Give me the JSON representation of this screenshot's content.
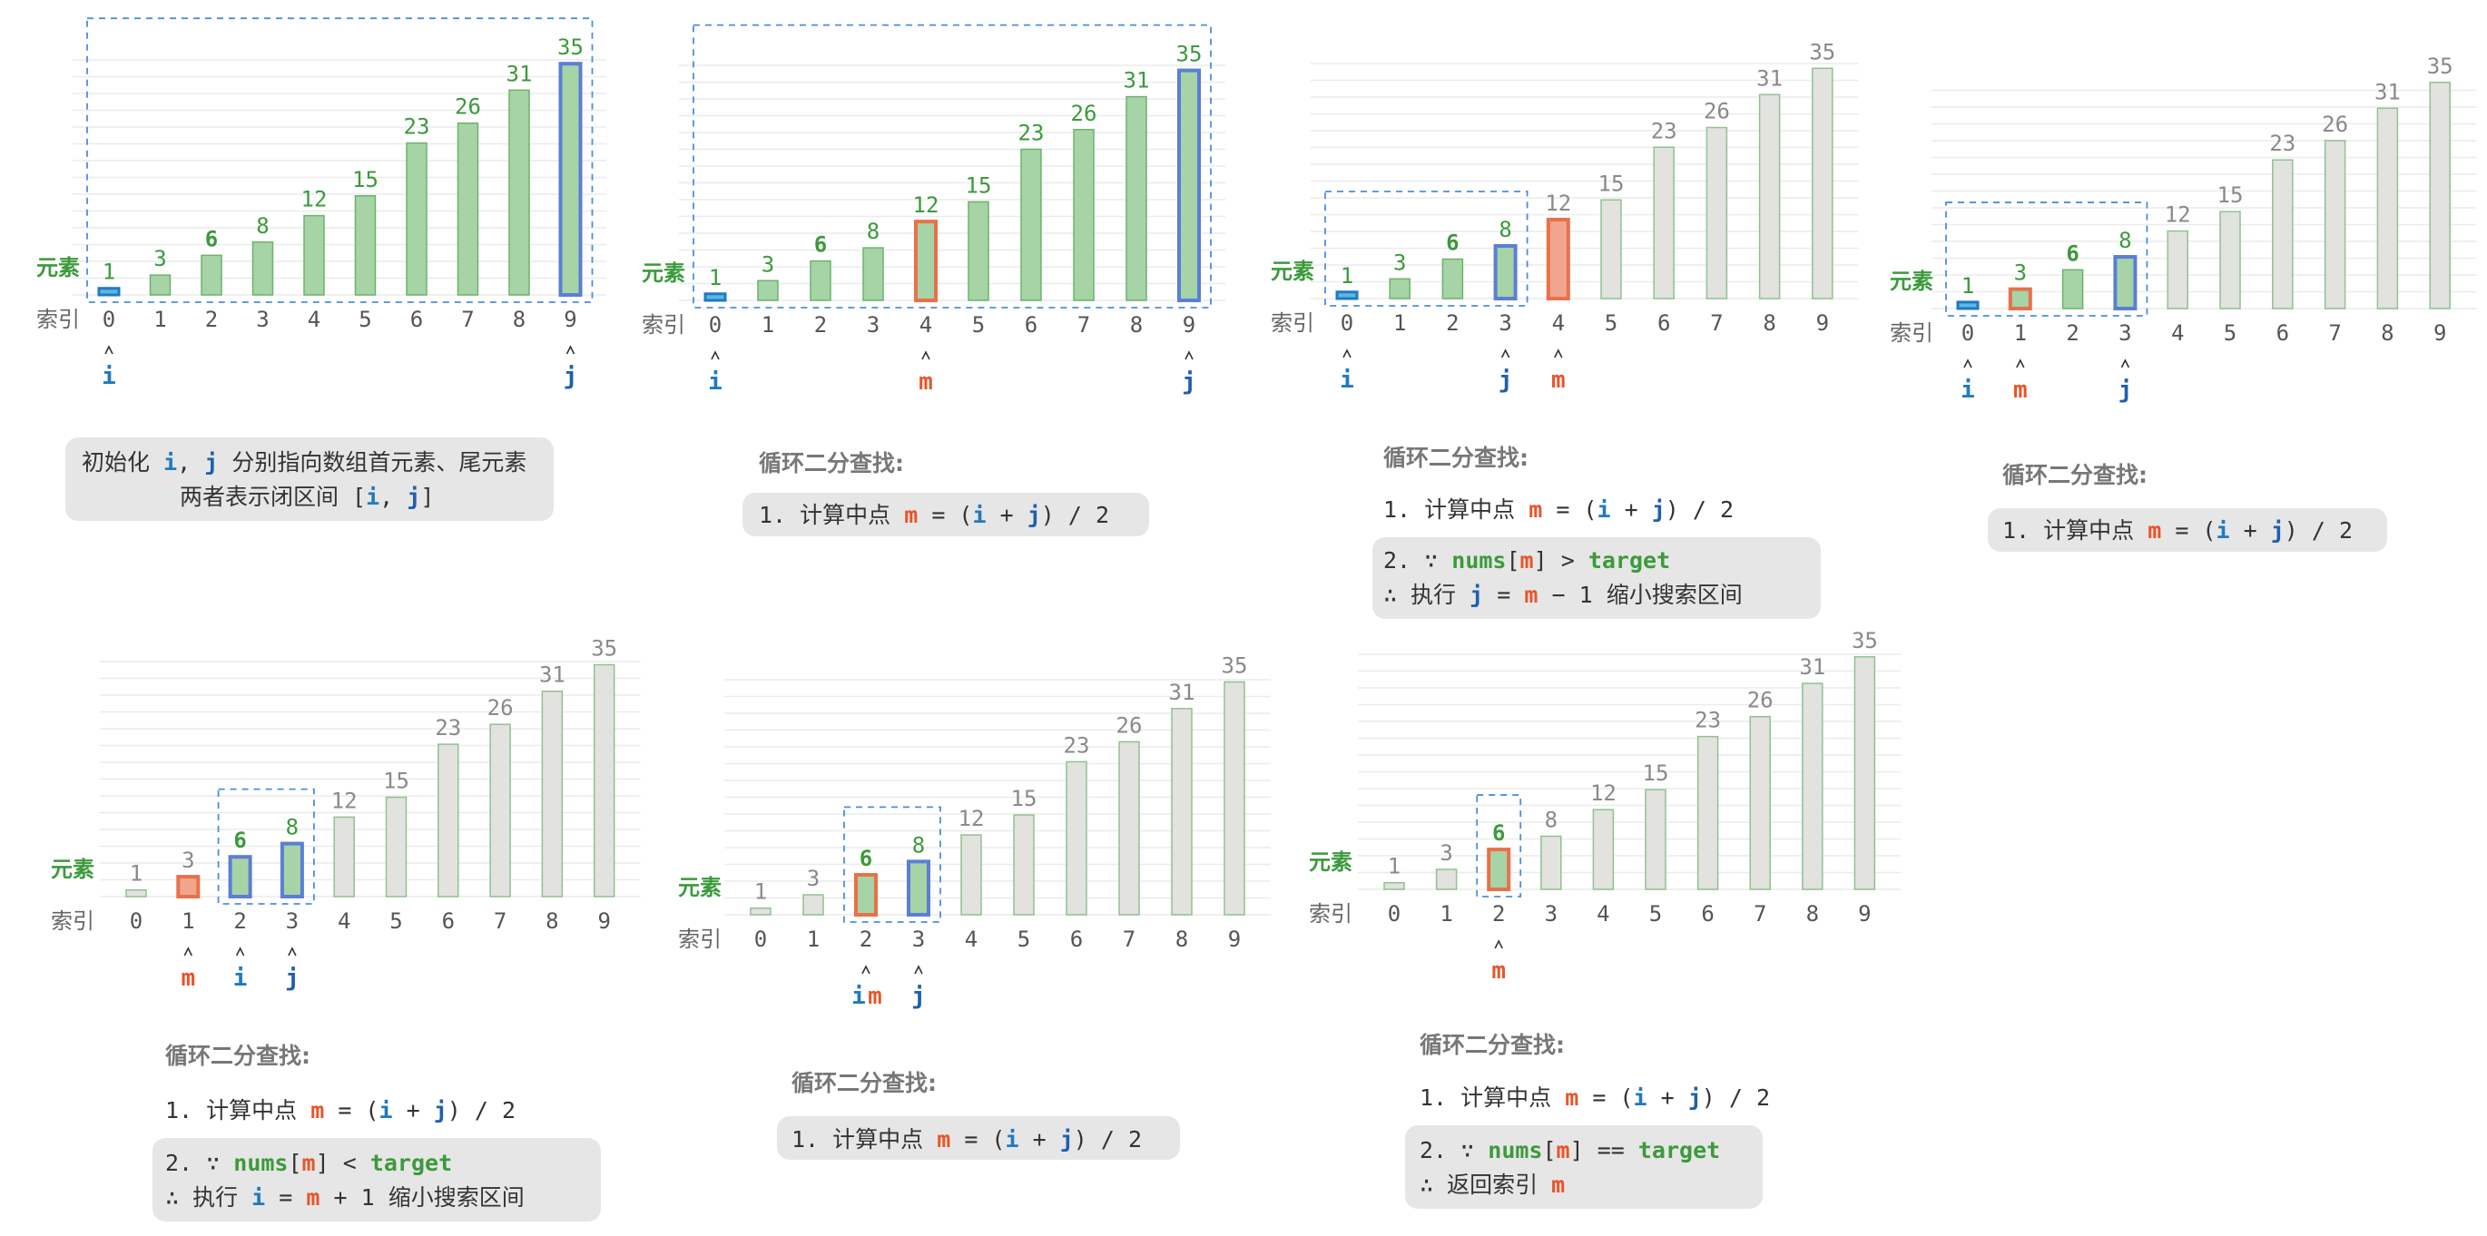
{
  "labels": {
    "element": "元素",
    "index": "索引"
  },
  "colors": {
    "green_bar": "#a6d4a6",
    "green_border": "#6bb36b",
    "grey_bar": "#e2e2df",
    "grey_border": "#8fc28f",
    "i_color": "#1f7ac2",
    "j_color": "#1f5fb0",
    "m_color": "#e8552a",
    "m_border": "#e8714a",
    "ij_border": "#5b7ed6",
    "green_text": "#3c9a3c",
    "dash": "#4a8ee0",
    "box_bg": "#e6e6e6",
    "label_green": "#3c9a3c",
    "grey_text": "#8a8a8a"
  },
  "chart_data": [
    {
      "type": "bar",
      "name": "step-1 init",
      "categories": [
        "0",
        "1",
        "2",
        "3",
        "4",
        "5",
        "6",
        "7",
        "8",
        "9"
      ],
      "values": [
        1,
        3,
        6,
        8,
        12,
        15,
        23,
        26,
        31,
        35
      ],
      "active_range": [
        0,
        9
      ],
      "pointers": [
        {
          "index": 0,
          "label": "i"
        },
        {
          "index": 9,
          "label": "j"
        }
      ]
    },
    {
      "type": "bar",
      "name": "step-2",
      "categories": [
        "0",
        "1",
        "2",
        "3",
        "4",
        "5",
        "6",
        "7",
        "8",
        "9"
      ],
      "values": [
        1,
        3,
        6,
        8,
        12,
        15,
        23,
        26,
        31,
        35
      ],
      "active_range": [
        0,
        9
      ],
      "pointers": [
        {
          "index": 0,
          "label": "i"
        },
        {
          "index": 4,
          "label": "m"
        },
        {
          "index": 9,
          "label": "j"
        }
      ]
    },
    {
      "type": "bar",
      "name": "step-3",
      "categories": [
        "0",
        "1",
        "2",
        "3",
        "4",
        "5",
        "6",
        "7",
        "8",
        "9"
      ],
      "values": [
        1,
        3,
        6,
        8,
        12,
        15,
        23,
        26,
        31,
        35
      ],
      "active_range": [
        0,
        3
      ],
      "pointers": [
        {
          "index": 0,
          "label": "i"
        },
        {
          "index": 3,
          "label": "j"
        },
        {
          "index": 4,
          "label": "m"
        }
      ]
    },
    {
      "type": "bar",
      "name": "step-4",
      "categories": [
        "0",
        "1",
        "2",
        "3",
        "4",
        "5",
        "6",
        "7",
        "8",
        "9"
      ],
      "values": [
        1,
        3,
        6,
        8,
        12,
        15,
        23,
        26,
        31,
        35
      ],
      "active_range": [
        0,
        3
      ],
      "pointers": [
        {
          "index": 0,
          "label": "i"
        },
        {
          "index": 1,
          "label": "m"
        },
        {
          "index": 3,
          "label": "j"
        }
      ]
    },
    {
      "type": "bar",
      "name": "step-5",
      "categories": [
        "0",
        "1",
        "2",
        "3",
        "4",
        "5",
        "6",
        "7",
        "8",
        "9"
      ],
      "values": [
        1,
        3,
        6,
        8,
        12,
        15,
        23,
        26,
        31,
        35
      ],
      "active_range": [
        2,
        3
      ],
      "pointers": [
        {
          "index": 1,
          "label": "m"
        },
        {
          "index": 2,
          "label": "i"
        },
        {
          "index": 3,
          "label": "j"
        }
      ]
    },
    {
      "type": "bar",
      "name": "step-6",
      "categories": [
        "0",
        "1",
        "2",
        "3",
        "4",
        "5",
        "6",
        "7",
        "8",
        "9"
      ],
      "values": [
        1,
        3,
        6,
        8,
        12,
        15,
        23,
        26,
        31,
        35
      ],
      "active_range": [
        2,
        3
      ],
      "pointers": [
        {
          "index": 2,
          "label": "im"
        },
        {
          "index": 3,
          "label": "j"
        }
      ]
    },
    {
      "type": "bar",
      "name": "step-7",
      "categories": [
        "0",
        "1",
        "2",
        "3",
        "4",
        "5",
        "6",
        "7",
        "8",
        "9"
      ],
      "values": [
        1,
        3,
        6,
        8,
        12,
        15,
        23,
        26,
        31,
        35
      ],
      "active_range": [
        2,
        2
      ],
      "pointers": [
        {
          "index": 2,
          "label": "m"
        }
      ]
    }
  ],
  "captions": {
    "init_line1": [
      {
        "t": "初始化 ",
        "c": "plain"
      },
      {
        "t": "i",
        "c": "i"
      },
      {
        "t": ", ",
        "c": "plain"
      },
      {
        "t": "j",
        "c": "j"
      },
      {
        "t": " 分别指向数组首元素、尾元素",
        "c": "plain"
      }
    ],
    "init_line2": [
      {
        "t": "两者表示闭区间 [",
        "c": "plain"
      },
      {
        "t": "i",
        "c": "i"
      },
      {
        "t": ", ",
        "c": "plain"
      },
      {
        "t": "j",
        "c": "j"
      },
      {
        "t": "]",
        "c": "plain"
      }
    ],
    "loop_title": "循环二分查找:",
    "step1": [
      {
        "t": "1. 计算中点 ",
        "c": "plain"
      },
      {
        "t": "m",
        "c": "m"
      },
      {
        "t": " = (",
        "c": "plain"
      },
      {
        "t": "i",
        "c": "i"
      },
      {
        "t": " + ",
        "c": "plain"
      },
      {
        "t": "j",
        "c": "j"
      },
      {
        "t": ") / 2",
        "c": "plain"
      }
    ],
    "step2_gt_l1": [
      {
        "t": "2. ∵ ",
        "c": "plain"
      },
      {
        "t": "nums",
        "c": "g"
      },
      {
        "t": "[",
        "c": "plain"
      },
      {
        "t": "m",
        "c": "m"
      },
      {
        "t": "] > ",
        "c": "plain"
      },
      {
        "t": "target",
        "c": "g"
      }
    ],
    "step2_gt_l2": [
      {
        "t": "   ∴ 执行 ",
        "c": "plain"
      },
      {
        "t": "j",
        "c": "j"
      },
      {
        "t": " = ",
        "c": "plain"
      },
      {
        "t": "m",
        "c": "m"
      },
      {
        "t": " − 1 缩小搜索区间",
        "c": "plain"
      }
    ],
    "step2_lt_l1": [
      {
        "t": "2. ∵ ",
        "c": "plain"
      },
      {
        "t": "nums",
        "c": "g"
      },
      {
        "t": "[",
        "c": "plain"
      },
      {
        "t": "m",
        "c": "m"
      },
      {
        "t": "] < ",
        "c": "plain"
      },
      {
        "t": "target",
        "c": "g"
      }
    ],
    "step2_lt_l2": [
      {
        "t": "   ∴ 执行 ",
        "c": "plain"
      },
      {
        "t": "i",
        "c": "i"
      },
      {
        "t": " = ",
        "c": "plain"
      },
      {
        "t": "m",
        "c": "m"
      },
      {
        "t": " + 1 缩小搜索区间",
        "c": "plain"
      }
    ],
    "step2_eq_l1": [
      {
        "t": "2. ∵ ",
        "c": "plain"
      },
      {
        "t": "nums",
        "c": "g"
      },
      {
        "t": "[",
        "c": "plain"
      },
      {
        "t": "m",
        "c": "m"
      },
      {
        "t": "] == ",
        "c": "plain"
      },
      {
        "t": "target",
        "c": "g"
      }
    ],
    "step2_eq_l2": [
      {
        "t": "   ∴ 返回索引 ",
        "c": "plain"
      },
      {
        "t": "m",
        "c": "m"
      }
    ]
  }
}
